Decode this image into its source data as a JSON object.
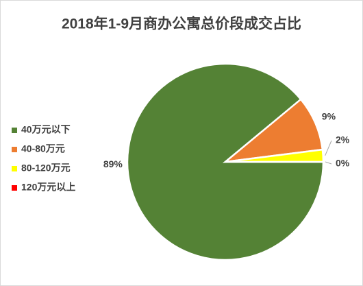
{
  "chart_data": {
    "type": "pie",
    "title": "2018年1-9月商办公寓总价段成交占比",
    "categories": [
      "40万元以下",
      "40-80万元",
      "80-120万元",
      "120万元以上"
    ],
    "values": [
      89,
      9,
      2,
      0
    ],
    "value_labels": [
      "89%",
      "9%",
      "2%",
      "0%"
    ],
    "colors": [
      "#548235",
      "#ed7d31",
      "#ffff00",
      "#ff0000"
    ],
    "legend": "left"
  }
}
